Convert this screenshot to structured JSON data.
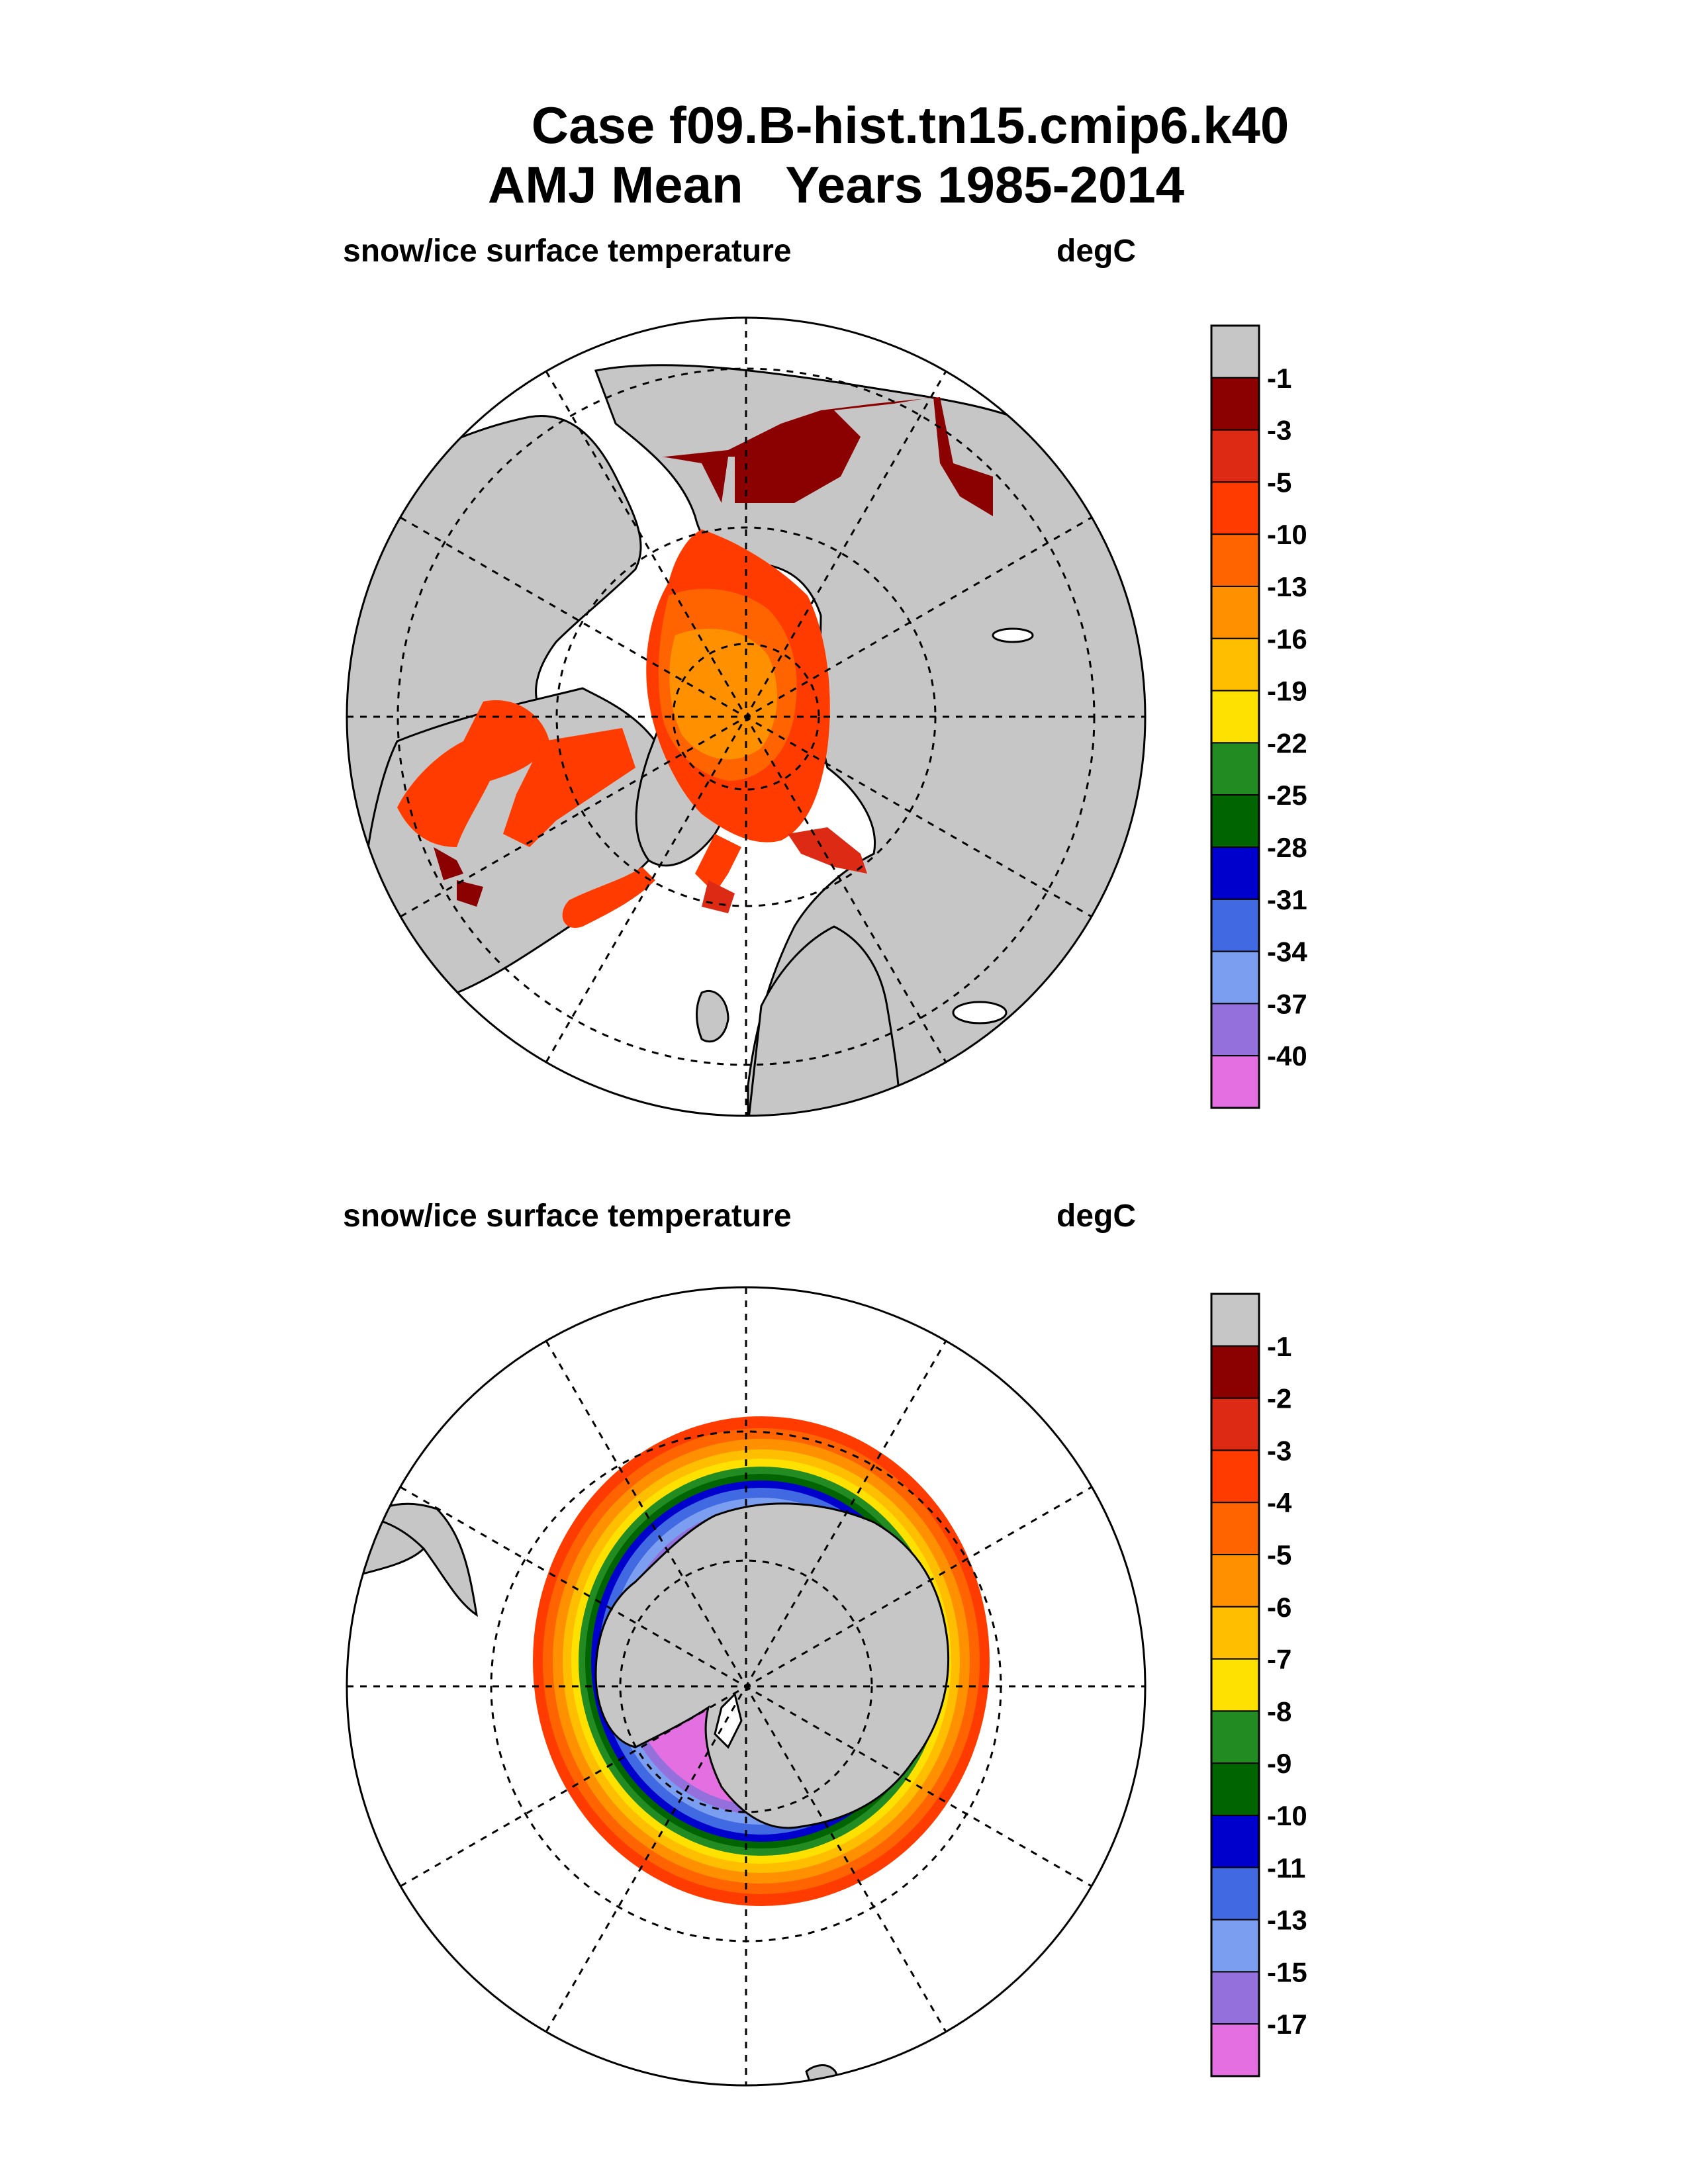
{
  "figure": {
    "title_line1": "Case f09.B-hist.tn15.cmip6.k40",
    "title_line2": "AMJ Mean   Years 1985-2014"
  },
  "chart_data": [
    {
      "type": "heatmap",
      "projection": "north polar stereographic",
      "hemisphere": "north",
      "variable_label": "snow/ice surface temperature",
      "units_label": "degC",
      "colorbar": {
        "tick_labels": [
          "-1",
          "-3",
          "-5",
          "-10",
          "-13",
          "-16",
          "-19",
          "-22",
          "-25",
          "-28",
          "-31",
          "-34",
          "-37",
          "-40"
        ],
        "colors": [
          "#c6c6c6",
          "#8b0000",
          "#dc2a14",
          "#ff3b00",
          "#ff6400",
          "#ff9100",
          "#ffbe00",
          "#ffe100",
          "#228b22",
          "#006400",
          "#0000cd",
          "#4169e1",
          "#7b9ef0",
          "#9370db",
          "#e36fe0"
        ]
      },
      "land_color": "#c6c6c6"
    },
    {
      "type": "heatmap",
      "projection": "south polar stereographic",
      "hemisphere": "south",
      "variable_label": "snow/ice surface temperature",
      "units_label": "degC",
      "colorbar": {
        "tick_labels": [
          "-1",
          "-2",
          "-3",
          "-4",
          "-5",
          "-6",
          "-7",
          "-8",
          "-9",
          "-10",
          "-11",
          "-13",
          "-15",
          "-17"
        ],
        "colors": [
          "#c6c6c6",
          "#8b0000",
          "#dc2a14",
          "#ff3b00",
          "#ff6400",
          "#ff9100",
          "#ffbe00",
          "#ffe100",
          "#228b22",
          "#006400",
          "#0000cd",
          "#4169e1",
          "#7b9ef0",
          "#9370db",
          "#e36fe0"
        ]
      },
      "land_color": "#c6c6c6"
    }
  ]
}
